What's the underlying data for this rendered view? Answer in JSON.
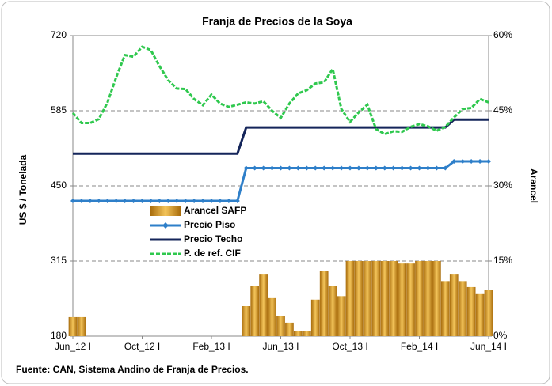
{
  "chart_data": {
    "type": "bar-line",
    "title": "Franja de Precios de la Soya",
    "y_label": "US $ / Tonelada",
    "y2_label": "Arancel",
    "source": "Fuente: CAN, Sistema Andino de Franja de Precios.",
    "categories": [
      "Jun_12 I",
      null,
      null,
      null,
      null,
      null,
      null,
      null,
      "Oct_12 I",
      null,
      null,
      null,
      null,
      null,
      null,
      null,
      "Feb_13 I",
      null,
      null,
      null,
      null,
      null,
      null,
      null,
      "Jun_13 I",
      null,
      null,
      null,
      null,
      null,
      null,
      null,
      "Oct_13 I",
      null,
      null,
      null,
      null,
      null,
      null,
      null,
      "Feb_14 I",
      null,
      null,
      null,
      null,
      null,
      null,
      null,
      "Jun_14 I"
    ],
    "ylim": [
      180,
      720
    ],
    "yticks": [
      180,
      315,
      450,
      585,
      720
    ],
    "y2lim": [
      0,
      60
    ],
    "y2ticks": [
      {
        "value": 0,
        "label": "0%"
      },
      {
        "value": 15,
        "label": "15%"
      },
      {
        "value": 30,
        "label": "30%"
      },
      {
        "value": 45,
        "label": "45%"
      },
      {
        "value": 60,
        "label": "60%"
      }
    ],
    "grid": true,
    "series": [
      {
        "name": "Arancel SAFP",
        "kind": "bar",
        "axis": "y2",
        "color": "#d99a22",
        "values": [
          3.8,
          3.8,
          0,
          0,
          0,
          0,
          0,
          0,
          0,
          0,
          0,
          0,
          0,
          0,
          0,
          0,
          0,
          0,
          0,
          0,
          6,
          10,
          12.3,
          7.6,
          4,
          2.7,
          1,
          1,
          7.3,
          13,
          10,
          8,
          15,
          15,
          15,
          15,
          15,
          15,
          14.5,
          14.5,
          15,
          15,
          15,
          11,
          12.3,
          11,
          9.8,
          8.4,
          9.3
        ]
      },
      {
        "name": "Precio Piso",
        "kind": "line",
        "color": "#2e7fc9",
        "values": [
          423,
          423,
          423,
          423,
          423,
          423,
          423,
          423,
          423,
          423,
          423,
          423,
          423,
          423,
          423,
          423,
          423,
          423,
          423,
          423,
          482,
          482,
          482,
          482,
          482,
          482,
          482,
          482,
          482,
          482,
          482,
          482,
          482,
          482,
          482,
          482,
          482,
          482,
          482,
          482,
          482,
          482,
          482,
          482,
          494,
          494,
          494,
          494,
          494
        ]
      },
      {
        "name": "Precio Techo",
        "kind": "line",
        "color": "#14255a",
        "values": [
          508,
          508,
          508,
          508,
          508,
          508,
          508,
          508,
          508,
          508,
          508,
          508,
          508,
          508,
          508,
          508,
          508,
          508,
          508,
          508,
          555,
          555,
          555,
          555,
          555,
          555,
          555,
          555,
          555,
          555,
          555,
          555,
          555,
          555,
          555,
          555,
          555,
          555,
          555,
          555,
          555,
          555,
          555,
          555,
          569,
          569,
          569,
          569,
          569
        ]
      },
      {
        "name": "P. de ref. CIF",
        "kind": "line",
        "color": "#2fc84e",
        "values": [
          581,
          563,
          563,
          570,
          600,
          645,
          685,
          682,
          700,
          694,
          665,
          640,
          625,
          624,
          606,
          595,
          614,
          598,
          592,
          596,
          600,
          598,
          602,
          585,
          572,
          598,
          616,
          622,
          634,
          636,
          660,
          588,
          565,
          582,
          596,
          552,
          543,
          548,
          547,
          556,
          561,
          557,
          549,
          556,
          573,
          588,
          590,
          606,
          600
        ]
      }
    ]
  }
}
